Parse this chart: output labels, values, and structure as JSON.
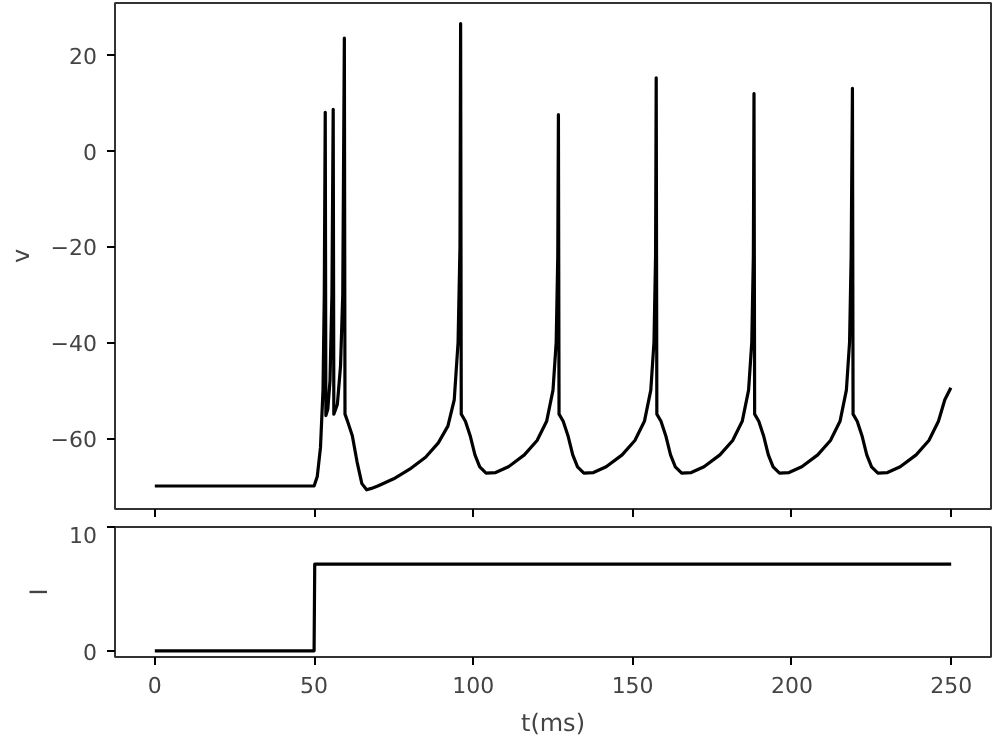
{
  "chart_data": [
    {
      "type": "line",
      "ylabel": "v",
      "xlim": [
        -12.5,
        262.5
      ],
      "ylim": [
        -74.8,
        30.8
      ],
      "xticks": [
        0,
        50,
        100,
        150,
        200,
        250
      ],
      "yticks": [
        -60,
        -40,
        -20,
        0,
        20
      ],
      "tick_labels": "y",
      "grid": false,
      "series": [
        {
          "color": "#000000",
          "x": [
            0,
            50,
            51,
            52,
            52.8,
            53.2,
            53.5,
            53.7,
            54.3,
            55,
            55.6,
            56,
            56.2,
            57.3,
            58.3,
            59,
            59.5,
            59.7,
            60.5,
            62,
            63.5,
            65,
            66.5,
            68,
            70,
            75,
            80,
            85,
            89,
            92,
            94,
            95.2,
            95.8,
            96,
            96.2,
            97.5,
            99,
            100.5,
            102,
            104,
            107,
            111,
            116,
            120,
            123,
            125,
            126,
            126.5,
            126.7,
            126.9,
            128.2,
            129.7,
            131.2,
            132.7,
            134.7,
            137.7,
            141.7,
            146.7,
            150.7,
            153.7,
            155.7,
            156.7,
            157.2,
            157.4,
            157.6,
            158.9,
            160.4,
            161.9,
            163.4,
            165.4,
            168.4,
            172.4,
            177.4,
            181.4,
            184.4,
            186.4,
            187.4,
            187.9,
            188.1,
            188.3,
            189.6,
            191.1,
            192.6,
            194.1,
            196.1,
            199.1,
            203.1,
            208.1,
            212.1,
            215.1,
            217.1,
            218.1,
            218.6,
            219,
            219.2,
            220.5,
            222,
            223.5,
            225,
            227,
            230,
            234,
            239,
            243,
            246,
            248,
            249.9
          ],
          "values": [
            -70,
            -70,
            -68,
            -62,
            -50,
            -30,
            8,
            -55.3,
            -54,
            -48,
            -30,
            8.6,
            -55,
            -53,
            -45,
            -30,
            23.5,
            -55,
            -56.5,
            -59.5,
            -65,
            -69.5,
            -70.8,
            -70.5,
            -70,
            -68.5,
            -66.5,
            -64,
            -61,
            -57.5,
            -52,
            -40,
            -20,
            26.5,
            -55,
            -56.5,
            -59.5,
            -63.5,
            -66,
            -67.3,
            -67.2,
            -66,
            -63.5,
            -60.5,
            -56.5,
            -50,
            -40,
            -22,
            7.5,
            -55,
            -56.5,
            -59.5,
            -63.5,
            -66,
            -67.3,
            -67.2,
            -66,
            -63.5,
            -60.5,
            -56.5,
            -50,
            -40,
            -22,
            15.2,
            -55,
            -56.5,
            -59.5,
            -63.5,
            -66,
            -67.3,
            -67.2,
            -66,
            -63.5,
            -60.5,
            -56.5,
            -50,
            -40,
            -22,
            11.9,
            -55,
            -56.5,
            -59.5,
            -63.5,
            -66,
            -67.3,
            -67.2,
            -66,
            -63.5,
            -60.5,
            -56.5,
            -50,
            -40,
            -22,
            13,
            -55,
            -56.5,
            -59.5,
            -63.5,
            -66,
            -67.3,
            -67.2,
            -66,
            -63.5,
            -60.5,
            -56.5,
            -52,
            -49.5
          ]
        }
      ]
    },
    {
      "type": "line",
      "ylabel": "I",
      "xlabel": "t(ms)",
      "xlim": [
        -12.5,
        262.5
      ],
      "ylim": [
        -0.5,
        10
      ],
      "xticks": [
        0,
        50,
        100,
        150,
        200,
        250
      ],
      "yticks": [
        0,
        10
      ],
      "grid": false,
      "series": [
        {
          "color": "#000000",
          "x": [
            0,
            50,
            50.2,
            250
          ],
          "values": [
            0,
            0,
            7,
            7
          ]
        }
      ]
    }
  ]
}
